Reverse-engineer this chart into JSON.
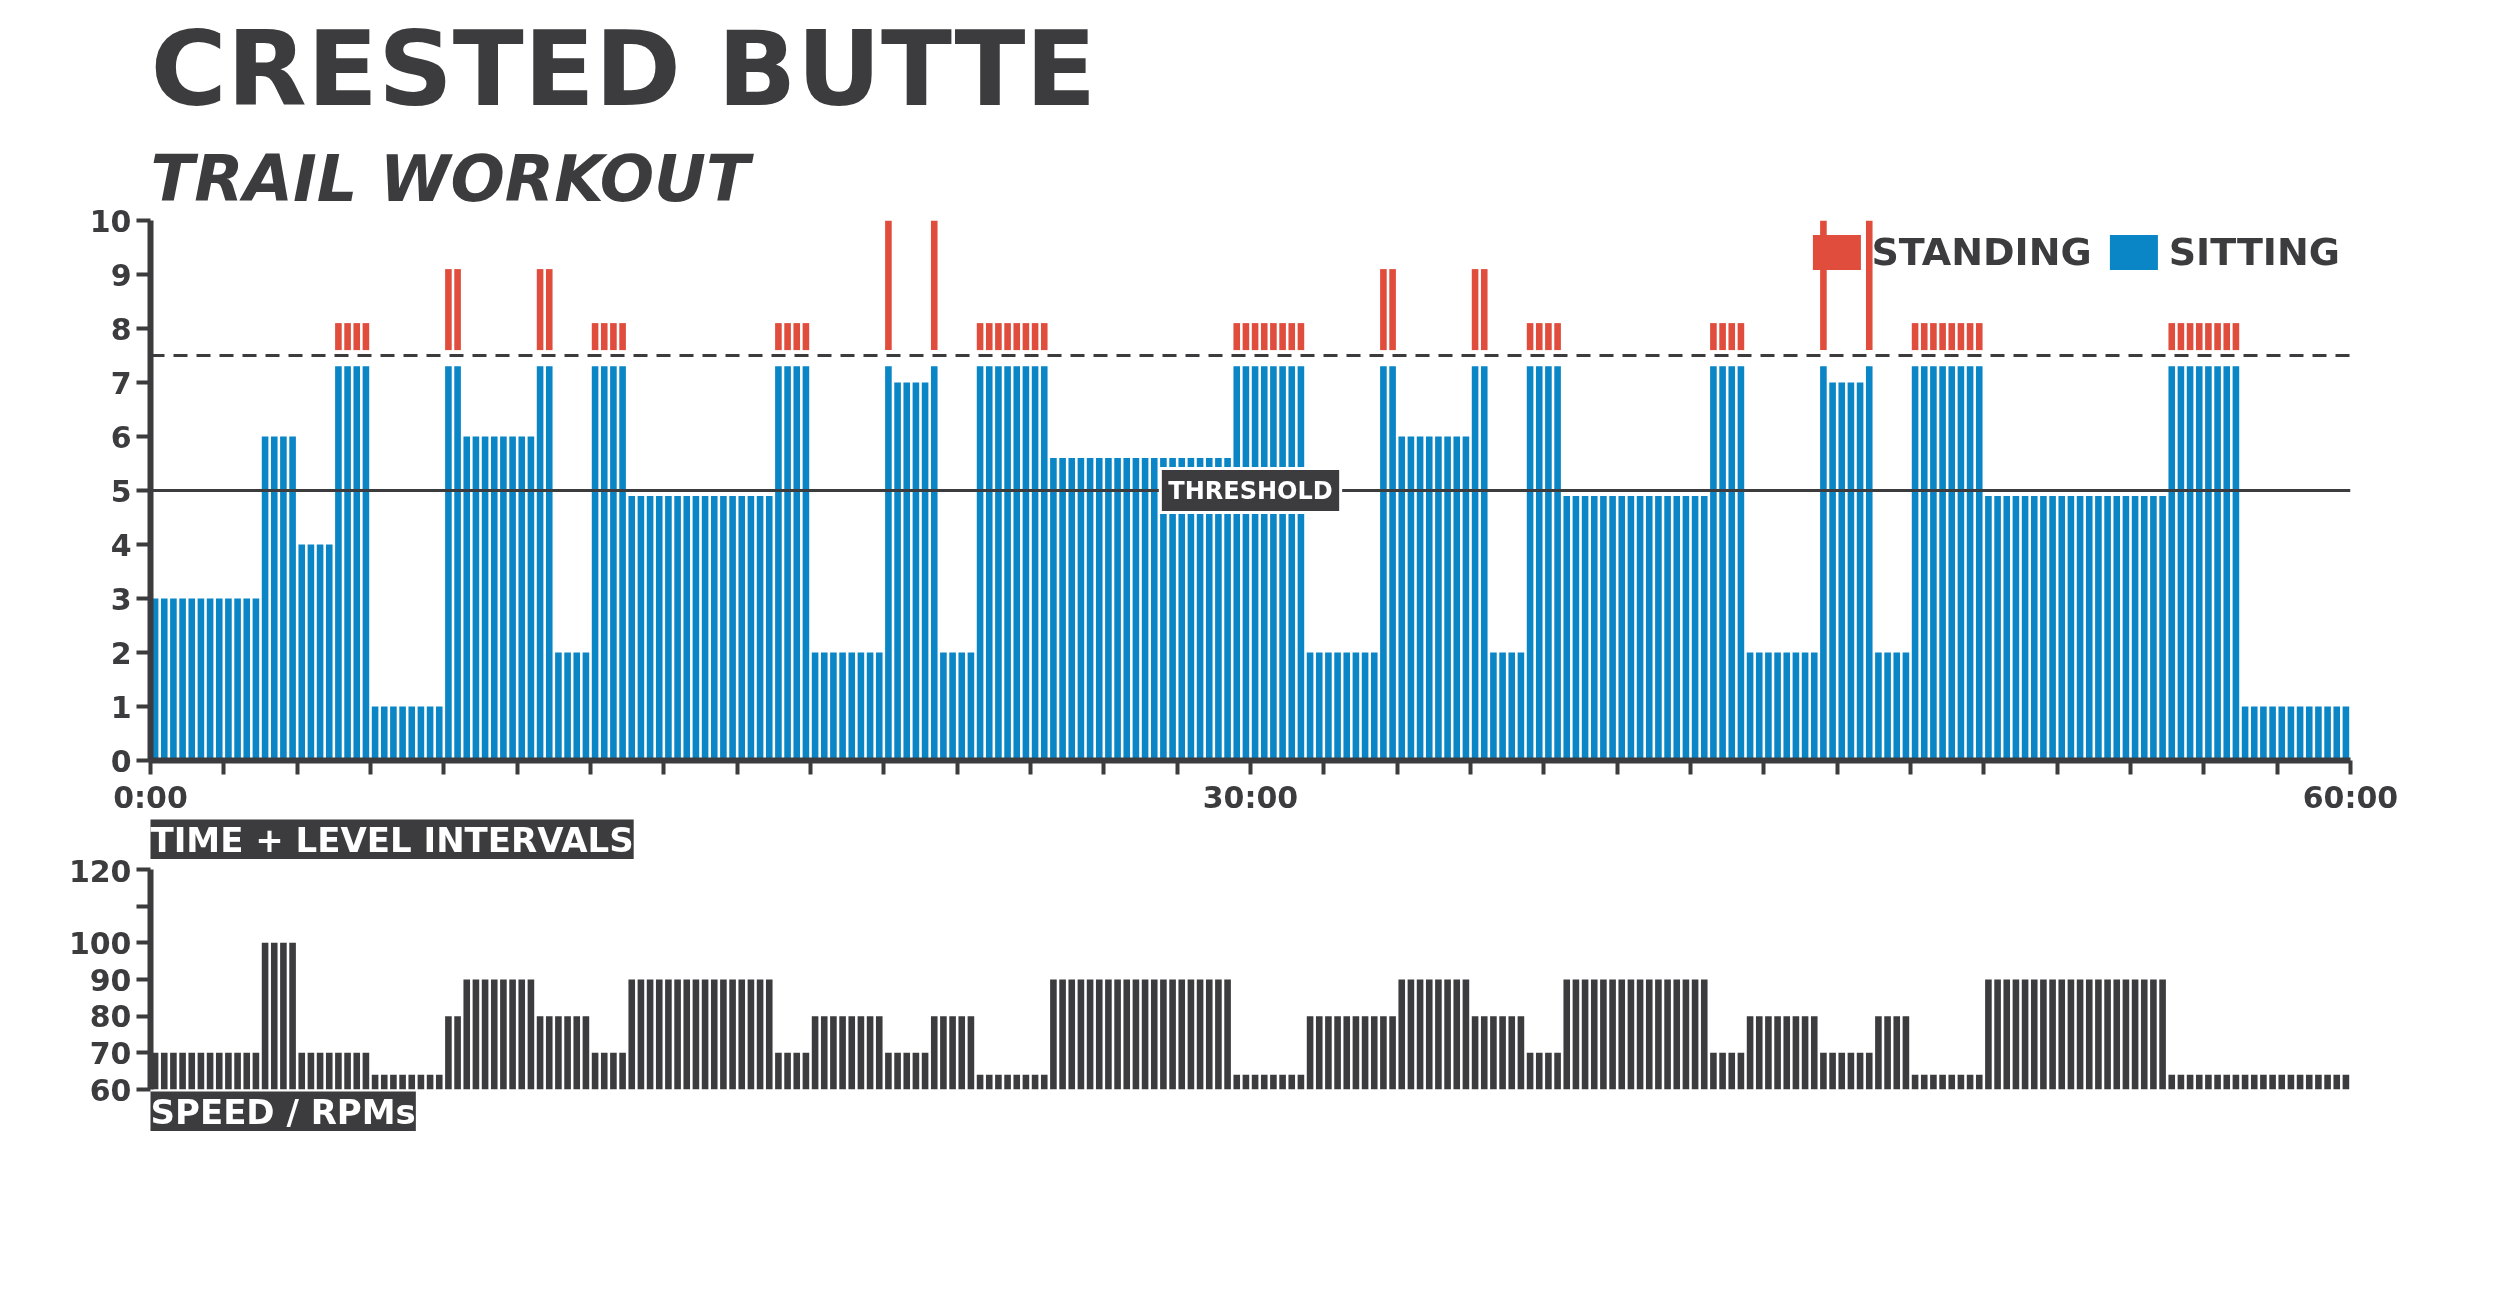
{
  "chart_data": [
    {
      "type": "bar",
      "title": "CRESTED BUTTE",
      "subtitle": "TRAIL WORKOUT",
      "xlabel": "TIME + LEVEL INTERVALS",
      "legend": "top right",
      "grid": false,
      "x": [
        0.125,
        0.375,
        0.625,
        0.875,
        1.125,
        1.375,
        1.625,
        1.875,
        2.125,
        2.375,
        2.625,
        2.875,
        3.125,
        3.375,
        3.625,
        3.875,
        4.125,
        4.375,
        4.625,
        4.875,
        5.125,
        5.375,
        5.625,
        5.875,
        6.125,
        6.375,
        6.625,
        6.875,
        7.125,
        7.375,
        7.625,
        7.875,
        8.125,
        8.375,
        8.625,
        8.875,
        9.125,
        9.375,
        9.625,
        9.875,
        10.125,
        10.375,
        10.625,
        10.875,
        11.125,
        11.375,
        11.625,
        11.875,
        12.125,
        12.375,
        12.625,
        12.875,
        13.125,
        13.375,
        13.625,
        13.875,
        14.125,
        14.375,
        14.625,
        14.875,
        15.125,
        15.375,
        15.625,
        15.875,
        16.125,
        16.375,
        16.625,
        16.875,
        17.125,
        17.375,
        17.625,
        17.875,
        18.125,
        18.375,
        18.625,
        18.875,
        19.125,
        19.375,
        19.625,
        19.875,
        20.125,
        20.375,
        20.625,
        20.875,
        21.125,
        21.375,
        21.625,
        21.875,
        22.125,
        22.375,
        22.625,
        22.875,
        23.125,
        23.375,
        23.625,
        23.875,
        24.125,
        24.375,
        24.625,
        24.875,
        25.125,
        25.375,
        25.625,
        25.875,
        26.125,
        26.375,
        26.625,
        26.875,
        27.125,
        27.375,
        27.625,
        27.875,
        28.125,
        28.375,
        28.625,
        28.875,
        29.125,
        29.375,
        29.625,
        29.875,
        30.125,
        30.375,
        30.625,
        30.875,
        31.125,
        31.375,
        31.625,
        31.875,
        32.125,
        32.375,
        32.625,
        32.875,
        33.125,
        33.375,
        33.625,
        33.875,
        34.125,
        34.375,
        34.625,
        34.875,
        35.125,
        35.375,
        35.625,
        35.875,
        36.125,
        36.375,
        36.625,
        36.875,
        37.125,
        37.375,
        37.625,
        37.875,
        38.125,
        38.375,
        38.625,
        38.875,
        39.125,
        39.375,
        39.625,
        39.875,
        40.125,
        40.375,
        40.625,
        40.875,
        41.125,
        41.375,
        41.625,
        41.875,
        42.125,
        42.375,
        42.625,
        42.875,
        43.125,
        43.375,
        43.625,
        43.875,
        44.125,
        44.375,
        44.625,
        44.875,
        45.125,
        45.375,
        45.625,
        45.875,
        46.125,
        46.375,
        46.625,
        46.875,
        47.125,
        47.375,
        47.625,
        47.875,
        48.125,
        48.375,
        48.625,
        48.875,
        49.125,
        49.375,
        49.625,
        49.875,
        50.125,
        50.375,
        50.625,
        50.875,
        51.125,
        51.375,
        51.625,
        51.875,
        52.125,
        52.375,
        52.625,
        52.875,
        53.125,
        53.375,
        53.625,
        53.875,
        54.125,
        54.375,
        54.625,
        54.875,
        55.125,
        55.375,
        55.625,
        55.875,
        56.125,
        56.375,
        56.625,
        56.875,
        57.125,
        57.375,
        57.625,
        57.875,
        58.125,
        58.375,
        58.625,
        58.875,
        59.125,
        59.375,
        59.625,
        59.875
      ],
      "series": [
        {
          "name": "SITTING",
          "color": "#0a85c5",
          "values": [
            3,
            3,
            3,
            3,
            3,
            3,
            3,
            3,
            3,
            3,
            3,
            3,
            6,
            6,
            6,
            6,
            4,
            4,
            4,
            4,
            7.3,
            7.3,
            7.3,
            7.3,
            1,
            1,
            1,
            1,
            1,
            1,
            1,
            1,
            7.3,
            7.3,
            6,
            6,
            6,
            6,
            6,
            6,
            6,
            6,
            7.3,
            7.3,
            2,
            2,
            2,
            2,
            7.3,
            7.3,
            7.3,
            7.3,
            4.9,
            4.9,
            4.9,
            4.9,
            4.9,
            4.9,
            4.9,
            4.9,
            4.9,
            4.9,
            4.9,
            4.9,
            4.9,
            4.9,
            4.9,
            4.9,
            7.3,
            7.3,
            7.3,
            7.3,
            2,
            2,
            2,
            2,
            2,
            2,
            2,
            2,
            7.3,
            7,
            7,
            7,
            7,
            7.3,
            2,
            2,
            2,
            2,
            7.3,
            7.3,
            7.3,
            7.3,
            7.3,
            7.3,
            7.3,
            7.3,
            5.6,
            5.6,
            5.6,
            5.6,
            5.6,
            5.6,
            5.6,
            5.6,
            5.6,
            5.6,
            5.6,
            5.6,
            5.6,
            5.6,
            5.6,
            5.6,
            5.6,
            5.6,
            5.6,
            5.6,
            7.3,
            7.3,
            7.3,
            7.3,
            7.3,
            7.3,
            7.3,
            7.3,
            2,
            2,
            2,
            2,
            2,
            2,
            2,
            2,
            7.3,
            7.3,
            6,
            6,
            6,
            6,
            6,
            6,
            6,
            6,
            7.3,
            7.3,
            2,
            2,
            2,
            2,
            7.3,
            7.3,
            7.3,
            7.3,
            4.9,
            4.9,
            4.9,
            4.9,
            4.9,
            4.9,
            4.9,
            4.9,
            4.9,
            4.9,
            4.9,
            4.9,
            4.9,
            4.9,
            4.9,
            4.9,
            7.3,
            7.3,
            7.3,
            7.3,
            2,
            2,
            2,
            2,
            2,
            2,
            2,
            2,
            7.3,
            7,
            7,
            7,
            7,
            7.3,
            2,
            2,
            2,
            2,
            7.3,
            7.3,
            7.3,
            7.3,
            7.3,
            7.3,
            7.3,
            7.3,
            4.9,
            4.9,
            4.9,
            4.9,
            4.9,
            4.9,
            4.9,
            4.9,
            4.9,
            4.9,
            4.9,
            4.9,
            4.9,
            4.9,
            4.9,
            4.9,
            4.9,
            4.9,
            4.9,
            4.9,
            7.3,
            7.3,
            7.3,
            7.3,
            7.3,
            7.3,
            7.3,
            7.3,
            1,
            1,
            1,
            1,
            1,
            1,
            1,
            1,
            1,
            1,
            1,
            1
          ]
        },
        {
          "name": "STANDING",
          "color": "#e14d3c",
          "base": [
            null,
            null,
            null,
            null,
            null,
            null,
            null,
            null,
            null,
            null,
            null,
            null,
            null,
            null,
            null,
            null,
            null,
            null,
            null,
            null,
            7.6,
            7.6,
            7.6,
            7.6,
            null,
            null,
            null,
            null,
            null,
            null,
            null,
            null,
            7.6,
            7.6,
            null,
            null,
            null,
            null,
            null,
            null,
            null,
            null,
            7.6,
            7.6,
            null,
            null,
            null,
            null,
            7.6,
            7.6,
            7.6,
            7.6,
            null,
            null,
            null,
            null,
            null,
            null,
            null,
            null,
            null,
            null,
            null,
            null,
            null,
            null,
            null,
            null,
            7.6,
            7.6,
            7.6,
            7.6,
            null,
            null,
            null,
            null,
            null,
            null,
            null,
            null,
            7.6,
            null,
            null,
            null,
            null,
            7.6,
            null,
            null,
            null,
            null,
            7.6,
            7.6,
            7.6,
            7.6,
            7.6,
            7.6,
            7.6,
            7.6,
            null,
            null,
            null,
            null,
            null,
            null,
            null,
            null,
            null,
            null,
            null,
            null,
            null,
            null,
            null,
            null,
            null,
            null,
            null,
            null,
            7.6,
            7.6,
            7.6,
            7.6,
            7.6,
            7.6,
            7.6,
            7.6,
            null,
            null,
            null,
            null,
            null,
            null,
            null,
            null,
            7.6,
            7.6,
            null,
            null,
            null,
            null,
            null,
            null,
            null,
            null,
            7.6,
            7.6,
            null,
            null,
            null,
            null,
            7.6,
            7.6,
            7.6,
            7.6,
            null,
            null,
            null,
            null,
            null,
            null,
            null,
            null,
            null,
            null,
            null,
            null,
            null,
            null,
            null,
            null,
            7.6,
            7.6,
            7.6,
            7.6,
            null,
            null,
            null,
            null,
            null,
            null,
            null,
            null,
            7.6,
            null,
            null,
            null,
            null,
            7.6,
            null,
            null,
            null,
            null,
            7.6,
            7.6,
            7.6,
            7.6,
            7.6,
            7.6,
            7.6,
            7.6,
            null,
            null,
            null,
            null,
            null,
            null,
            null,
            null,
            null,
            null,
            null,
            null,
            null,
            null,
            null,
            null,
            null,
            null,
            null,
            null,
            7.6,
            7.6,
            7.6,
            7.6,
            7.6,
            7.6,
            7.6,
            7.6,
            null,
            null,
            null,
            null,
            null,
            null,
            null,
            null,
            null,
            null,
            null,
            null
          ],
          "values": [
            null,
            null,
            null,
            null,
            null,
            null,
            null,
            null,
            null,
            null,
            null,
            null,
            null,
            null,
            null,
            null,
            null,
            null,
            null,
            null,
            0.5,
            0.5,
            0.5,
            0.5,
            null,
            null,
            null,
            null,
            null,
            null,
            null,
            null,
            1.5,
            1.5,
            null,
            null,
            null,
            null,
            null,
            null,
            null,
            null,
            1.5,
            1.5,
            null,
            null,
            null,
            null,
            0.5,
            0.5,
            0.5,
            0.5,
            null,
            null,
            null,
            null,
            null,
            null,
            null,
            null,
            null,
            null,
            null,
            null,
            null,
            null,
            null,
            null,
            0.5,
            0.5,
            0.5,
            0.5,
            null,
            null,
            null,
            null,
            null,
            null,
            null,
            null,
            2.4,
            null,
            null,
            null,
            null,
            2.4,
            null,
            null,
            null,
            null,
            0.5,
            0.5,
            0.5,
            0.5,
            0.5,
            0.5,
            0.5,
            0.5,
            null,
            null,
            null,
            null,
            null,
            null,
            null,
            null,
            null,
            null,
            null,
            null,
            null,
            null,
            null,
            null,
            null,
            null,
            null,
            null,
            0.5,
            0.5,
            0.5,
            0.5,
            0.5,
            0.5,
            0.5,
            0.5,
            null,
            null,
            null,
            null,
            null,
            null,
            null,
            null,
            1.5,
            1.5,
            null,
            null,
            null,
            null,
            null,
            null,
            null,
            null,
            1.5,
            1.5,
            null,
            null,
            null,
            null,
            0.5,
            0.5,
            0.5,
            0.5,
            null,
            null,
            null,
            null,
            null,
            null,
            null,
            null,
            null,
            null,
            null,
            null,
            null,
            null,
            null,
            null,
            0.5,
            0.5,
            0.5,
            0.5,
            null,
            null,
            null,
            null,
            null,
            null,
            null,
            null,
            2.4,
            null,
            null,
            null,
            null,
            2.4,
            null,
            null,
            null,
            null,
            0.5,
            0.5,
            0.5,
            0.5,
            0.5,
            0.5,
            0.5,
            0.5,
            null,
            null,
            null,
            null,
            null,
            null,
            null,
            null,
            null,
            null,
            null,
            null,
            null,
            null,
            null,
            null,
            null,
            null,
            null,
            null,
            0.5,
            0.5,
            0.5,
            0.5,
            0.5,
            0.5,
            0.5,
            0.5,
            null,
            null,
            null,
            null,
            null,
            null,
            null,
            null,
            null,
            null,
            null,
            null
          ]
        }
      ],
      "xlim": [
        0,
        60
      ],
      "xticks": [
        {
          "value": 0,
          "label": "0:00"
        },
        {
          "value": 2,
          "label": null
        },
        {
          "value": 4,
          "label": null
        },
        {
          "value": 6,
          "label": null
        },
        {
          "value": 8,
          "label": null
        },
        {
          "value": 10,
          "label": null
        },
        {
          "value": 12,
          "label": null
        },
        {
          "value": 14,
          "label": null
        },
        {
          "value": 16,
          "label": null
        },
        {
          "value": 18,
          "label": null
        },
        {
          "value": 20,
          "label": null
        },
        {
          "value": 22,
          "label": null
        },
        {
          "value": 24,
          "label": null
        },
        {
          "value": 26,
          "label": null
        },
        {
          "value": 28,
          "label": null
        },
        {
          "value": 30,
          "label": "30:00"
        },
        {
          "value": 32,
          "label": null
        },
        {
          "value": 34,
          "label": null
        },
        {
          "value": 36,
          "label": null
        },
        {
          "value": 38,
          "label": null
        },
        {
          "value": 40,
          "label": null
        },
        {
          "value": 42,
          "label": null
        },
        {
          "value": 44,
          "label": null
        },
        {
          "value": 46,
          "label": null
        },
        {
          "value": 48,
          "label": null
        },
        {
          "value": 50,
          "label": null
        },
        {
          "value": 52,
          "label": null
        },
        {
          "value": 54,
          "label": null
        },
        {
          "value": 56,
          "label": null
        },
        {
          "value": 58,
          "label": null
        },
        {
          "value": 60,
          "label": "60:00"
        }
      ],
      "ylim": [
        0,
        10
      ],
      "yticks": [
        0,
        1,
        2,
        3,
        4,
        5,
        6,
        7,
        8,
        9,
        10
      ],
      "ref_lines": [
        {
          "axis": "y",
          "value": 5,
          "label": "THRESHOLD",
          "color": "#3c3b3d",
          "line_style": "solid"
        },
        {
          "axis": "y",
          "value": 7.5,
          "color": "#3c3b3d",
          "line_style": "dashed"
        }
      ]
    },
    {
      "type": "bar",
      "xlabel": "SPEED / RPMs",
      "grid": false,
      "tick_labels": "y",
      "x": [
        0.125,
        0.375,
        0.625,
        0.875,
        1.125,
        1.375,
        1.625,
        1.875,
        2.125,
        2.375,
        2.625,
        2.875,
        3.125,
        3.375,
        3.625,
        3.875,
        4.125,
        4.375,
        4.625,
        4.875,
        5.125,
        5.375,
        5.625,
        5.875,
        6.125,
        6.375,
        6.625,
        6.875,
        7.125,
        7.375,
        7.625,
        7.875,
        8.125,
        8.375,
        8.625,
        8.875,
        9.125,
        9.375,
        9.625,
        9.875,
        10.125,
        10.375,
        10.625,
        10.875,
        11.125,
        11.375,
        11.625,
        11.875,
        12.125,
        12.375,
        12.625,
        12.875,
        13.125,
        13.375,
        13.625,
        13.875,
        14.125,
        14.375,
        14.625,
        14.875,
        15.125,
        15.375,
        15.625,
        15.875,
        16.125,
        16.375,
        16.625,
        16.875,
        17.125,
        17.375,
        17.625,
        17.875,
        18.125,
        18.375,
        18.625,
        18.875,
        19.125,
        19.375,
        19.625,
        19.875,
        20.125,
        20.375,
        20.625,
        20.875,
        21.125,
        21.375,
        21.625,
        21.875,
        22.125,
        22.375,
        22.625,
        22.875,
        23.125,
        23.375,
        23.625,
        23.875,
        24.125,
        24.375,
        24.625,
        24.875,
        25.125,
        25.375,
        25.625,
        25.875,
        26.125,
        26.375,
        26.625,
        26.875,
        27.125,
        27.375,
        27.625,
        27.875,
        28.125,
        28.375,
        28.625,
        28.875,
        29.125,
        29.375,
        29.625,
        29.875,
        30.125,
        30.375,
        30.625,
        30.875,
        31.125,
        31.375,
        31.625,
        31.875,
        32.125,
        32.375,
        32.625,
        32.875,
        33.125,
        33.375,
        33.625,
        33.875,
        34.125,
        34.375,
        34.625,
        34.875,
        35.125,
        35.375,
        35.625,
        35.875,
        36.125,
        36.375,
        36.625,
        36.875,
        37.125,
        37.375,
        37.625,
        37.875,
        38.125,
        38.375,
        38.625,
        38.875,
        39.125,
        39.375,
        39.625,
        39.875,
        40.125,
        40.375,
        40.625,
        40.875,
        41.125,
        41.375,
        41.625,
        41.875,
        42.125,
        42.375,
        42.625,
        42.875,
        43.125,
        43.375,
        43.625,
        43.875,
        44.125,
        44.375,
        44.625,
        44.875,
        45.125,
        45.375,
        45.625,
        45.875,
        46.125,
        46.375,
        46.625,
        46.875,
        47.125,
        47.375,
        47.625,
        47.875,
        48.125,
        48.375,
        48.625,
        48.875,
        49.125,
        49.375,
        49.625,
        49.875,
        50.125,
        50.375,
        50.625,
        50.875,
        51.125,
        51.375,
        51.625,
        51.875,
        52.125,
        52.375,
        52.625,
        52.875,
        53.125,
        53.375,
        53.625,
        53.875,
        54.125,
        54.375,
        54.625,
        54.875,
        55.125,
        55.375,
        55.625,
        55.875,
        56.125,
        56.375,
        56.625,
        56.875,
        57.125,
        57.375,
        57.625,
        57.875,
        58.125,
        58.375,
        58.625,
        58.875,
        59.125,
        59.375,
        59.625,
        59.875
      ],
      "series": [
        {
          "color": "#3c3b3d",
          "values": [
            70,
            70,
            70,
            70,
            70,
            70,
            70,
            70,
            70,
            70,
            70,
            70,
            100,
            100,
            100,
            100,
            70,
            70,
            70,
            70,
            70,
            70,
            70,
            70,
            64,
            64,
            64,
            64,
            64,
            64,
            64,
            64,
            80,
            80,
            90,
            90,
            90,
            90,
            90,
            90,
            90,
            90,
            80,
            80,
            80,
            80,
            80,
            80,
            70,
            70,
            70,
            70,
            90,
            90,
            90,
            90,
            90,
            90,
            90,
            90,
            90,
            90,
            90,
            90,
            90,
            90,
            90,
            90,
            70,
            70,
            70,
            70,
            80,
            80,
            80,
            80,
            80,
            80,
            80,
            80,
            70,
            70,
            70,
            70,
            70,
            80,
            80,
            80,
            80,
            80,
            64,
            64,
            64,
            64,
            64,
            64,
            64,
            64,
            90,
            90,
            90,
            90,
            90,
            90,
            90,
            90,
            90,
            90,
            90,
            90,
            90,
            90,
            90,
            90,
            90,
            90,
            90,
            90,
            64,
            64,
            64,
            64,
            64,
            64,
            64,
            64,
            80,
            80,
            80,
            80,
            80,
            80,
            80,
            80,
            80,
            80,
            90,
            90,
            90,
            90,
            90,
            90,
            90,
            90,
            80,
            80,
            80,
            80,
            80,
            80,
            70,
            70,
            70,
            70,
            90,
            90,
            90,
            90,
            90,
            90,
            90,
            90,
            90,
            90,
            90,
            90,
            90,
            90,
            90,
            90,
            70,
            70,
            70,
            70,
            80,
            80,
            80,
            80,
            80,
            80,
            80,
            80,
            70,
            70,
            70,
            70,
            70,
            70,
            80,
            80,
            80,
            80,
            64,
            64,
            64,
            64,
            64,
            64,
            64,
            64,
            90,
            90,
            90,
            90,
            90,
            90,
            90,
            90,
            90,
            90,
            90,
            90,
            90,
            90,
            90,
            90,
            90,
            90,
            90,
            90,
            64,
            64,
            64,
            64,
            64,
            64,
            64,
            64,
            64,
            64,
            64,
            64,
            64,
            64,
            64,
            64,
            64,
            64,
            64,
            64
          ]
        }
      ],
      "xlim": [
        0,
        60
      ],
      "ylim": [
        60,
        120
      ],
      "yticks": [
        60,
        70,
        80,
        90,
        100,
        {
          "value": 110,
          "label": null
        },
        120
      ]
    }
  ]
}
